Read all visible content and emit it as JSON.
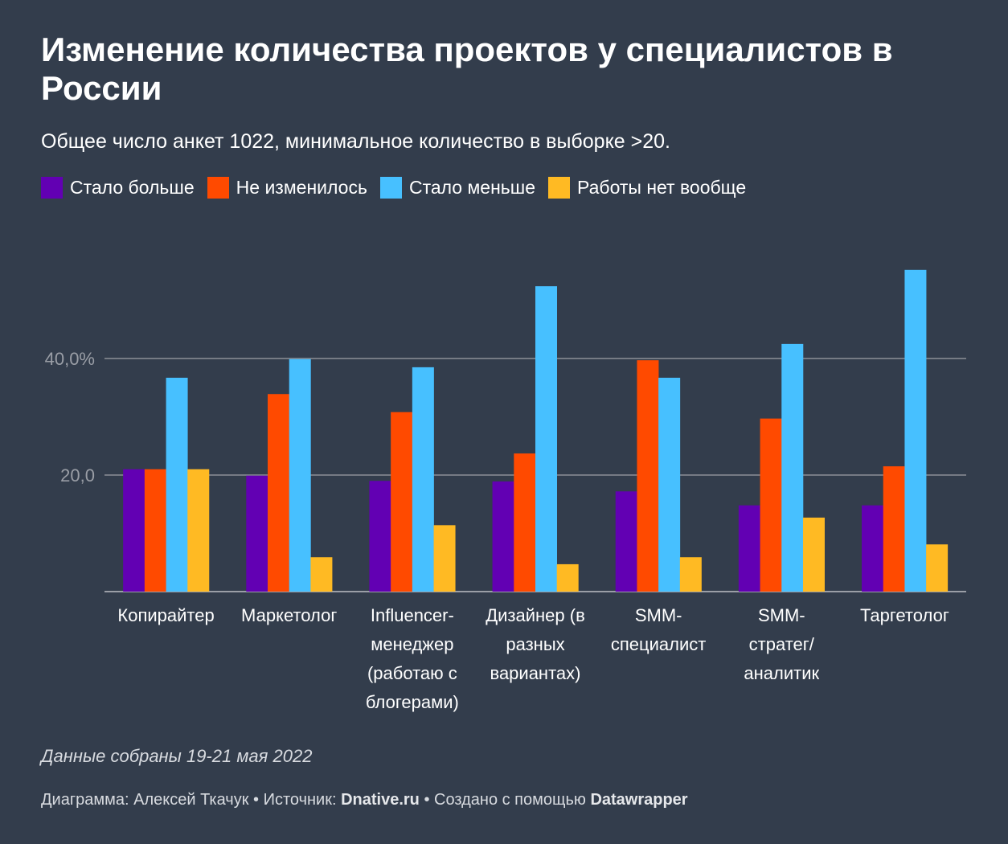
{
  "title": "Изменение количества проектов у специалистов в России",
  "subtitle": "Общее число анкет 1022, минимальное количество в выборке >20.",
  "note": "Данные собраны 19-21 мая 2022",
  "footer": {
    "chart_prefix": "Диаграмма: Алексей Ткачук",
    "sep": " • ",
    "source_prefix": "Источник: ",
    "source": "Dnative.ru",
    "made_prefix": "Создано с помощью ",
    "made_with": "Datawrapper"
  },
  "chart_data": {
    "type": "bar",
    "title": "Изменение количества проектов у специалистов в России",
    "ylim": [
      0,
      60
    ],
    "yticks": [
      0,
      20,
      40
    ],
    "ytick_labels": [
      "",
      "20,0",
      "40,0%"
    ],
    "grid": true,
    "legend_placement": "top-left",
    "categories": [
      "Копирайтер",
      "Маркетолог",
      "Influencer-\nменеджер\n(работаю с\nблогерами)",
      "Дизайнер (в\nразных\nвариантах)",
      "SMM-\nспециалист",
      "SMM-\nстратег/\nаналитик",
      "Таргетолог"
    ],
    "series": [
      {
        "name": "Стало больше",
        "color": "#6200b3",
        "values": [
          21.0,
          19.9,
          19.0,
          18.9,
          17.2,
          14.8,
          14.8
        ]
      },
      {
        "name": "Не изменилось",
        "color": "#ff4a00",
        "values": [
          21.0,
          33.9,
          30.8,
          23.7,
          39.7,
          29.7,
          21.5
        ]
      },
      {
        "name": "Стало меньше",
        "color": "#47c0ff",
        "values": [
          36.7,
          39.9,
          38.5,
          52.4,
          36.7,
          42.5,
          55.2
        ]
      },
      {
        "name": "Работы нет вообще",
        "color": "#ffba23",
        "values": [
          21.0,
          5.9,
          11.4,
          4.7,
          5.9,
          12.7,
          8.1
        ]
      }
    ]
  }
}
